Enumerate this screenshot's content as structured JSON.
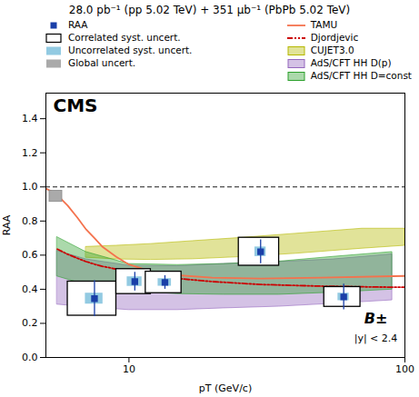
{
  "chart_data": {
    "type": "scatter",
    "title": "28.0 pb⁻¹ (pp 5.02 TeV) + 351 μb⁻¹ (PbPb 5.02 TeV)",
    "xlabel": "pT (GeV/c)",
    "ylabel": "RAA",
    "log": "x",
    "xlim": [
      5.0,
      100.0
    ],
    "xticks": [
      10,
      100
    ],
    "ylim": [
      0.0,
      1.55
    ],
    "yticks": [
      {
        "value": 0.0,
        "label": "0.0"
      },
      0.2,
      0.4,
      0.6,
      0.8,
      {
        "value": 1.0,
        "label": "1.0"
      },
      1.2,
      1.4
    ],
    "grid": false,
    "legend": "top",
    "annotations": [
      "CMS",
      "B±",
      "|y| < 2.4"
    ],
    "hline": {
      "y": 1.0,
      "color": "#000000",
      "line_style": "dashed"
    },
    "series": [
      {
        "name": "RAA",
        "type": "scatter",
        "marker": "square",
        "color": "#1a3fa8",
        "x": [
          7.5,
          10.5,
          13.5,
          30.0,
          60.0
        ],
        "values": [
          0.345,
          0.445,
          0.44,
          0.62,
          0.355
        ],
        "errors": [
          0.105,
          0.055,
          0.04,
          0.07,
          0.075
        ]
      },
      {
        "name": "Correlated syst. uncert.",
        "type": "box",
        "marker": "hollow",
        "color": "#000000",
        "x": [
          7.5,
          10.5,
          13.5,
          30.0,
          60.0
        ],
        "values": [
          0.345,
          0.445,
          0.44,
          0.62,
          0.355
        ],
        "half_width": [
          1.5,
          1.5,
          2.0,
          5.0,
          9.0
        ],
        "half_height": [
          0.1,
          0.073,
          0.063,
          0.082,
          0.058
        ]
      },
      {
        "name": "Uncorrelated syst. uncert.",
        "type": "box",
        "marker": "filled",
        "color": "#6db8d8",
        "x": [
          7.5,
          10.5,
          13.5,
          30.0,
          60.0
        ],
        "values": [
          0.345,
          0.445,
          0.44,
          0.62,
          0.355
        ],
        "half_width": [
          0.55,
          0.65,
          0.75,
          1.4,
          2.8
        ],
        "half_height": [
          0.032,
          0.028,
          0.022,
          0.028,
          0.022
        ]
      },
      {
        "name": "Global uncert.",
        "type": "box",
        "marker": "filled",
        "color": "#aaaaaa",
        "values": [
          0.945
        ],
        "height": [
          0.065
        ]
      },
      {
        "name": "TAMU",
        "type": "line",
        "line_style": "solid",
        "color": "#f4724d",
        "x": [
          5.0,
          5.3,
          5.6,
          6.0,
          6.5,
          7.0,
          7.5,
          8.0,
          9.0,
          10.0,
          12.0,
          15.0,
          20.0,
          30.0,
          50.0,
          100.0
        ],
        "values": [
          0.99,
          0.97,
          0.94,
          0.89,
          0.82,
          0.75,
          0.7,
          0.65,
          0.59,
          0.545,
          0.505,
          0.482,
          0.468,
          0.463,
          0.468,
          0.478
        ]
      },
      {
        "name": "Djordjevic",
        "type": "line",
        "line_style": "dashdot",
        "color": "#cc0000",
        "x": [
          5.5,
          6.0,
          6.5,
          7.0,
          7.5,
          8.0,
          9.0,
          10.0,
          12.0,
          15.0,
          20.0,
          30.0,
          50.0,
          80.0,
          100.0
        ],
        "values": [
          0.635,
          0.605,
          0.582,
          0.562,
          0.547,
          0.535,
          0.518,
          0.505,
          0.483,
          0.463,
          0.445,
          0.428,
          0.418,
          0.413,
          0.412
        ]
      },
      {
        "name": "CUJET3.0",
        "type": "band",
        "color": "#b5b800",
        "x": [
          7.0,
          9.0,
          12.0,
          17.0,
          25.0,
          40.0,
          70.0,
          100.0,
          100.0,
          70.0,
          40.0,
          25.0,
          17.0,
          12.0,
          9.0,
          7.0
        ],
        "values": [
          0.585,
          0.575,
          0.572,
          0.576,
          0.588,
          0.608,
          0.638,
          0.655,
          0.755,
          0.755,
          0.725,
          0.7,
          0.682,
          0.665,
          0.655,
          0.648
        ]
      },
      {
        "name": "AdS/CFT HH D(p)",
        "type": "band",
        "color": "#9467bd",
        "x": [
          5.5,
          7.0,
          10.0,
          15.0,
          22.0,
          35.0,
          55.0,
          90.0,
          90.0,
          55.0,
          35.0,
          22.0,
          15.0,
          10.0,
          7.0,
          5.5
        ],
        "values": [
          0.31,
          0.295,
          0.278,
          0.278,
          0.288,
          0.298,
          0.315,
          0.335,
          0.605,
          0.575,
          0.56,
          0.548,
          0.535,
          0.538,
          0.575,
          0.625
        ]
      },
      {
        "name": "AdS/CFT HH D=const",
        "type": "band",
        "color": "#2ca02c",
        "x": [
          5.5,
          7.0,
          10.0,
          15.0,
          22.0,
          35.0,
          55.0,
          90.0,
          90.0,
          55.0,
          35.0,
          22.0,
          15.0,
          10.0,
          7.0,
          5.5
        ],
        "values": [
          0.475,
          0.425,
          0.388,
          0.372,
          0.368,
          0.368,
          0.38,
          0.398,
          0.618,
          0.59,
          0.562,
          0.548,
          0.542,
          0.548,
          0.618,
          0.705
        ]
      }
    ]
  }
}
